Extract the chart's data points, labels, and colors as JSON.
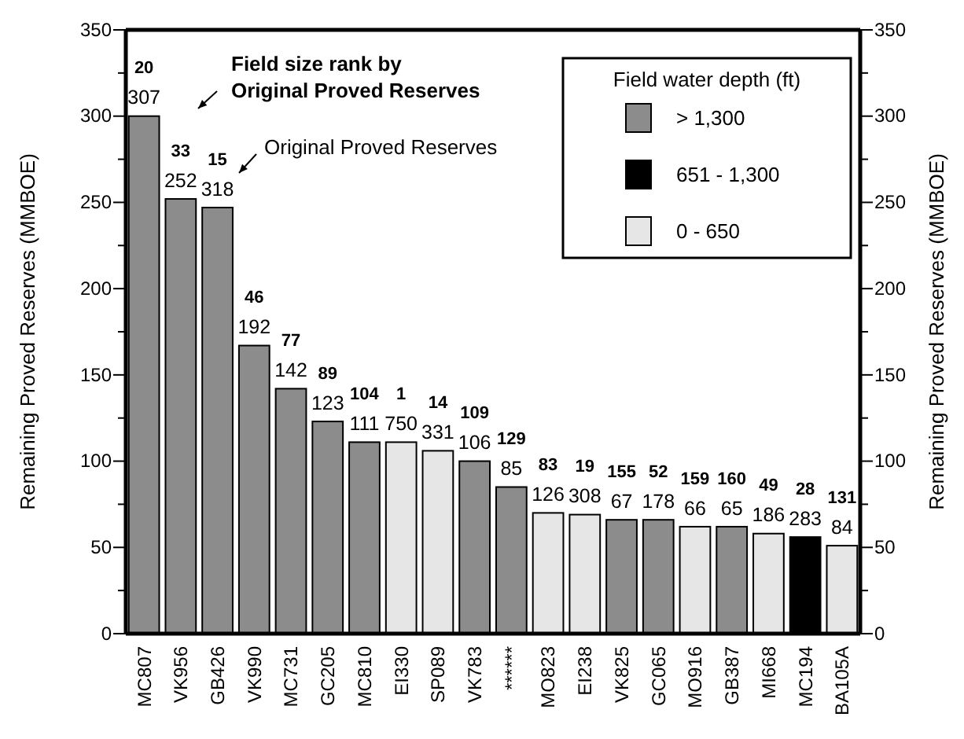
{
  "chart_data": {
    "type": "bar",
    "categories": [
      "MC807",
      "VK956",
      "GB426",
      "VK990",
      "MC731",
      "GC205",
      "MC810",
      "EI330",
      "SP089",
      "VK783",
      "******",
      "MO823",
      "EI238",
      "VK825",
      "GC065",
      "MO916",
      "GB387",
      "MI668",
      "MC194",
      "BA105A"
    ],
    "series": [
      {
        "name": "> 1,300",
        "color": "#8c8c8c",
        "values": [
          300,
          252,
          247,
          167,
          142,
          123,
          111,
          null,
          null,
          100,
          85,
          null,
          null,
          66,
          66,
          null,
          62,
          null,
          null,
          null
        ]
      },
      {
        "name": "651 - 1,300",
        "color": "#000000",
        "values": [
          null,
          null,
          null,
          null,
          null,
          null,
          null,
          null,
          null,
          null,
          null,
          null,
          null,
          null,
          null,
          null,
          null,
          null,
          56,
          null
        ]
      },
      {
        "name": "0  -  650",
        "color": "#e6e6e6",
        "values": [
          null,
          null,
          null,
          null,
          null,
          null,
          null,
          111,
          106,
          null,
          null,
          70,
          69,
          null,
          null,
          62,
          null,
          58,
          null,
          51
        ]
      }
    ],
    "ylabel": "Remaining Proved Reserves (MMBOE)",
    "y2label": "Remaining Proved Reserves (MMBOE)",
    "ylim": [
      0,
      350
    ],
    "yticks": [
      0,
      {
        "value": 25,
        "label": null
      },
      50,
      {
        "value": 75,
        "label": null
      },
      100,
      {
        "value": 125,
        "label": null
      },
      150,
      {
        "value": 175,
        "label": null
      },
      200,
      {
        "value": 225,
        "label": null
      },
      250,
      {
        "value": 275,
        "label": null
      },
      300,
      {
        "value": 325,
        "label": null
      },
      350
    ],
    "y2lim": [
      0,
      350
    ],
    "y2ticks": [
      0,
      {
        "value": 25,
        "label": null
      },
      50,
      {
        "value": 75,
        "label": null
      },
      100,
      {
        "value": 125,
        "label": null
      },
      150,
      {
        "value": 175,
        "label": null
      },
      200,
      {
        "value": 225,
        "label": null
      },
      250,
      {
        "value": 275,
        "label": null
      },
      300,
      {
        "value": 325,
        "label": null
      },
      350
    ],
    "legend": "top right",
    "legend_title": "Field water depth (ft)",
    "grid": false,
    "annotations": [
      "Field size rank by\nOriginal Proved Reserves",
      "Original Proved Reserves",
      "20",
      "307",
      "33",
      "252",
      "15",
      "318",
      "46",
      "192",
      "77",
      "142",
      "89",
      "123",
      "104",
      "111",
      "1",
      "750",
      "14",
      "331",
      "109",
      "106",
      "129",
      "85",
      "83",
      "126",
      "19",
      "308",
      "155",
      "67",
      "52",
      "178",
      "159",
      "66",
      "160",
      "65",
      "49",
      "186",
      "28",
      "283",
      "131",
      "84"
    ]
  }
}
